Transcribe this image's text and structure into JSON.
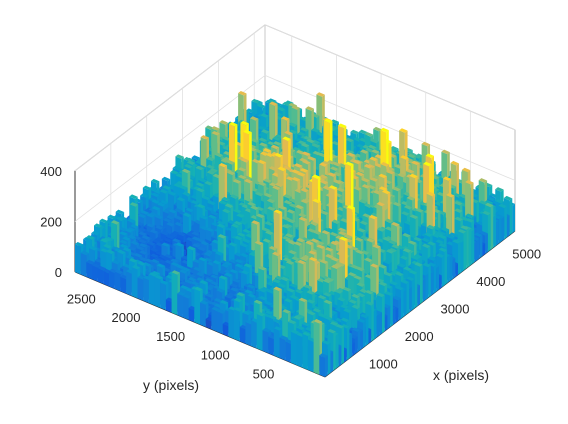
{
  "chart_data": {
    "type": "surface",
    "colormap": "parula",
    "view": "3d",
    "xlabel": "x (pixels)",
    "ylabel": "y (pixels)",
    "zlabel": "",
    "xlim": [
      0,
      5300
    ],
    "ylim": [
      0,
      2800
    ],
    "zlim": [
      0,
      400
    ],
    "xticks": [
      1000,
      2000,
      3000,
      4000,
      5000
    ],
    "yticks": [
      500,
      1000,
      1500,
      2000,
      2500
    ],
    "zticks": [
      0,
      200,
      400
    ],
    "xtick_labels": [
      "1000",
      "2000",
      "3000",
      "4000",
      "5000"
    ],
    "ytick_labels": [
      "500",
      "1000",
      "1500",
      "2000",
      "2500"
    ],
    "ztick_labels": [
      "0",
      "200",
      "400"
    ],
    "grid": true,
    "surface_description_values": {
      "typical_height_range": [
        0,
        300
      ],
      "max_height_approx": 350
    }
  }
}
